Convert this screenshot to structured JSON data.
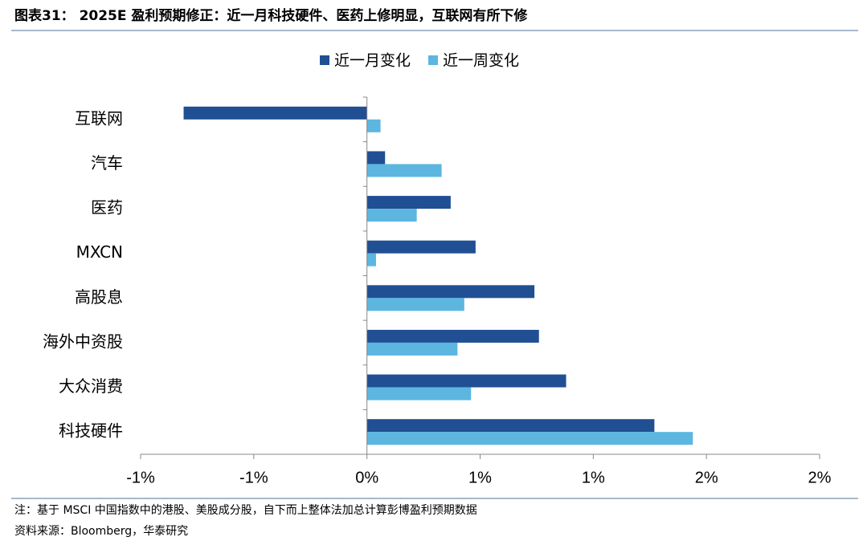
{
  "chart_data": {
    "type": "hbar",
    "title": "图表31： 2025E 盈利预期修正：近一月科技硬件、医药上修明显，互联网有所下修",
    "categories": [
      "互联网",
      "汽车",
      "医药",
      "MXCN",
      "高股息",
      "海外中资股",
      "大众消费",
      "科技硬件"
    ],
    "series": [
      {
        "name": "近一月变化",
        "color": "#214f93",
        "values": [
          -0.81,
          0.08,
          0.37,
          0.48,
          0.74,
          0.76,
          0.88,
          1.27
        ]
      },
      {
        "name": "近一周变化",
        "color": "#5cb6e0",
        "values": [
          0.06,
          0.33,
          0.22,
          0.04,
          0.43,
          0.4,
          0.46,
          1.44
        ]
      }
    ],
    "xlim": [
      -1.0,
      2.0
    ],
    "xticks": [
      {
        "value": -1.0,
        "label": "-1%"
      },
      {
        "value": -0.5,
        "label": "-1%"
      },
      {
        "value": 0,
        "label": "0%"
      },
      {
        "value": 0.5,
        "label": "1%"
      },
      {
        "value": 1.0,
        "label": "1%"
      },
      {
        "value": 1.5,
        "label": "2%"
      },
      {
        "value": 2.0,
        "label": "2%"
      }
    ],
    "legend": "top"
  },
  "footnotes": [
    "注：基于 MSCI 中国指数中的港股、美股成分股，自下而上整体法加总计算彭博盈利预期数据",
    "资料来源：Bloomberg，华泰研究"
  ]
}
